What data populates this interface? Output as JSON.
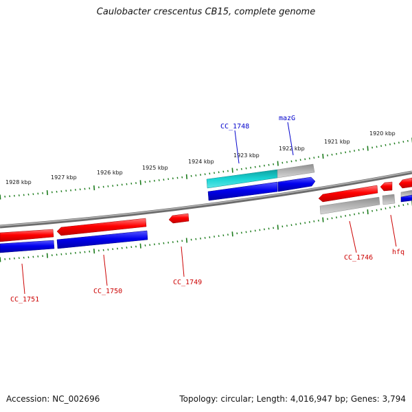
{
  "title": "Caulobacter crescentus CB15, complete genome",
  "accession": "Accession: NC_002696",
  "topology": "Topology: circular; Length: 4,016,947 bp; Genes: 3,794",
  "kbp_labels": [
    "1928 kbp",
    "1927 kbp",
    "1926 kbp",
    "1925 kbp",
    "1924 kbp",
    "1923 kbp",
    "1922 kbp",
    "1921 kbp",
    "1920 kbp"
  ],
  "genes": {
    "cc1748": "CC_1748",
    "mazG": "mazG",
    "cc1746": "CC_1746",
    "hfq": "hfq",
    "cc1749": "CC_1749",
    "cc1750": "CC_1750",
    "cc1751": "CC_1751"
  },
  "colors": {
    "forward_cds": "#ff0000",
    "reverse_cds": "#0000ee",
    "cyan_feature": "#19d4d4",
    "gray_feature": "#b4b4b4",
    "backbone": "#8a8a8a",
    "tick": "#1a7a1a",
    "label_blue": "#0000cc",
    "label_red": "#cc0000"
  }
}
